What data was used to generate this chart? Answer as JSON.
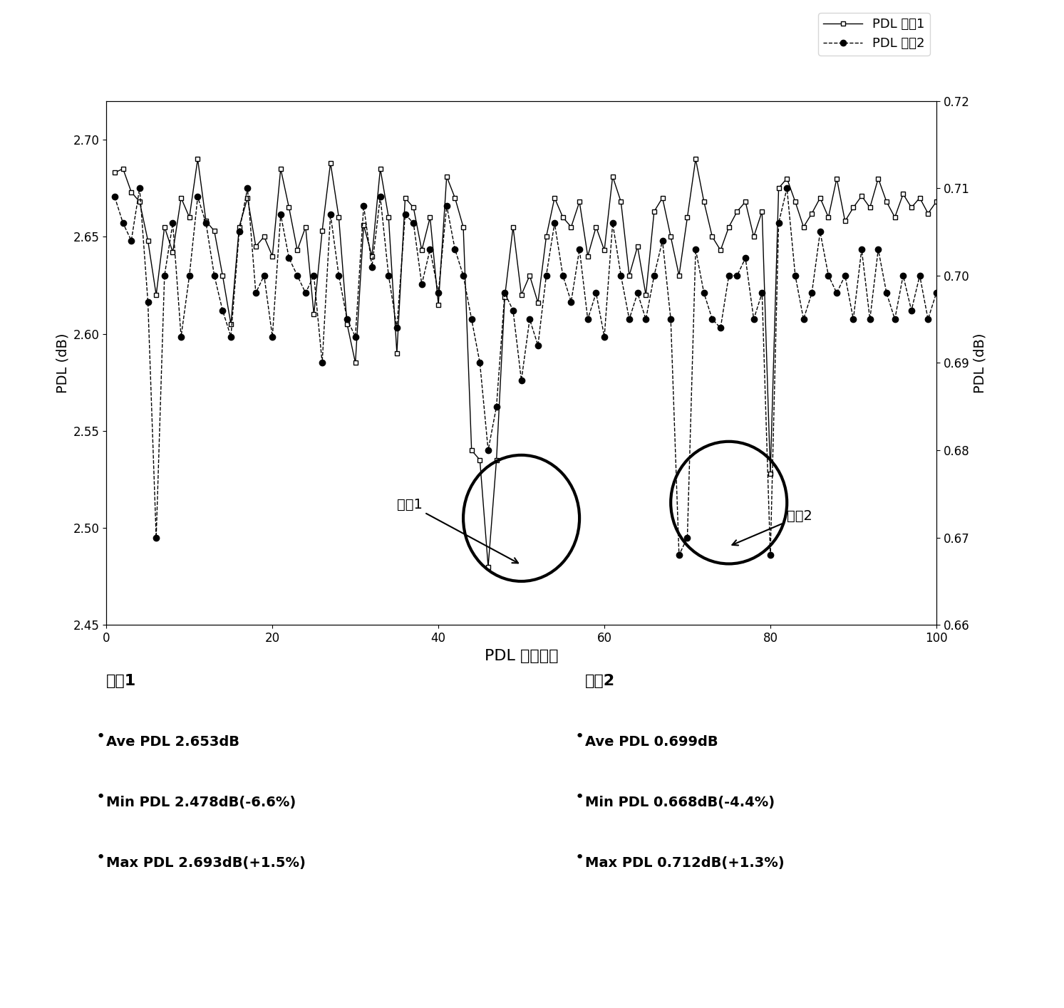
{
  "title": "",
  "xlabel": "PDL 测量次数",
  "ylabel_left": "PDL (dB)",
  "ylabel_right": "PDL (dB)",
  "xlim": [
    0,
    100
  ],
  "ylim_left": [
    2.45,
    2.72
  ],
  "ylim_right": [
    0.66,
    0.72
  ],
  "xticks": [
    0,
    20,
    40,
    60,
    80,
    100
  ],
  "yticks_left": [
    2.45,
    2.5,
    2.55,
    2.6,
    2.65,
    2.7
  ],
  "yticks_right": [
    0.66,
    0.67,
    0.68,
    0.69,
    0.7,
    0.71,
    0.72
  ],
  "legend_labels": [
    "PDL 样哆1",
    "PDL 样哆2"
  ],
  "sample1_label": "样哆1",
  "sample2_label": "样哆2",
  "stats_s1_title": "样哆1",
  "stats_s2_title": "样哆2",
  "stats_s1": [
    "Ave PDL 2.653dB",
    "Min PDL 2.478dB(-6.6%)",
    "Max PDL 2.693dB(+1.5%)"
  ],
  "stats_s2": [
    "Ave PDL 0.699dB",
    "Min PDL 0.668dB(-4.4%)",
    "Max PDL 0.712dB(+1.3%)"
  ],
  "s1_data": [
    2.683,
    2.685,
    2.673,
    2.668,
    2.648,
    2.62,
    2.655,
    2.642,
    2.67,
    2.66,
    2.69,
    2.658,
    2.653,
    2.63,
    2.605,
    2.655,
    2.67,
    2.645,
    2.65,
    2.64,
    2.685,
    2.665,
    2.643,
    2.655,
    2.61,
    2.653,
    2.688,
    2.66,
    2.605,
    2.585,
    2.656,
    2.64,
    2.685,
    2.66,
    2.59,
    2.67,
    2.665,
    2.643,
    2.66,
    2.615,
    2.681,
    2.67,
    2.655,
    2.54,
    2.535,
    2.48,
    2.535,
    2.619,
    2.655,
    2.62,
    2.63,
    2.616,
    2.65,
    2.67,
    2.66,
    2.655,
    2.668,
    2.64,
    2.655,
    2.643,
    2.681,
    2.668,
    2.63,
    2.645,
    2.62,
    2.663,
    2.67,
    2.65,
    2.63,
    2.66,
    2.69,
    2.668,
    2.65,
    2.643,
    2.655,
    2.663,
    2.668,
    2.65,
    2.663,
    2.528,
    2.675,
    2.68,
    2.668,
    2.655,
    2.662,
    2.67,
    2.66,
    2.68,
    2.658,
    2.665,
    2.671,
    2.665,
    2.68,
    2.668,
    2.66,
    2.672,
    2.665,
    2.67,
    2.662,
    2.668
  ],
  "s2_data": [
    0.709,
    0.706,
    0.704,
    0.71,
    0.697,
    0.67,
    0.7,
    0.706,
    0.693,
    0.7,
    0.709,
    0.706,
    0.7,
    0.696,
    0.693,
    0.705,
    0.71,
    0.698,
    0.7,
    0.693,
    0.707,
    0.702,
    0.7,
    0.698,
    0.7,
    0.69,
    0.707,
    0.7,
    0.695,
    0.693,
    0.708,
    0.701,
    0.709,
    0.7,
    0.694,
    0.707,
    0.706,
    0.699,
    0.703,
    0.698,
    0.708,
    0.703,
    0.7,
    0.695,
    0.69,
    0.68,
    0.685,
    0.698,
    0.696,
    0.688,
    0.695,
    0.692,
    0.7,
    0.706,
    0.7,
    0.697,
    0.703,
    0.695,
    0.698,
    0.693,
    0.706,
    0.7,
    0.695,
    0.698,
    0.695,
    0.7,
    0.704,
    0.695,
    0.668,
    0.67,
    0.703,
    0.698,
    0.695,
    0.694,
    0.7,
    0.7,
    0.702,
    0.695,
    0.698,
    0.668,
    0.706,
    0.71,
    0.7,
    0.695,
    0.698,
    0.705,
    0.7,
    0.698,
    0.7,
    0.695,
    0.703,
    0.695,
    0.703,
    0.698,
    0.695,
    0.7,
    0.696,
    0.7,
    0.695,
    0.698
  ]
}
